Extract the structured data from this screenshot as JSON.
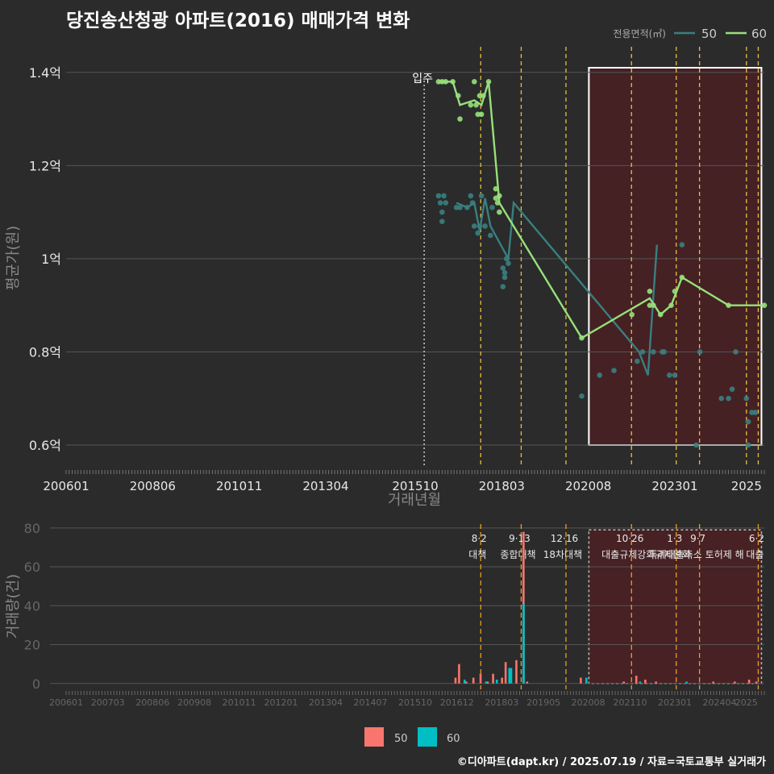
{
  "title": "당진송산청광 아파트(2016) 매매가격 변화",
  "footer": "©디아파트(dapt.kr) / 2025.07.19 / 자료=국토교통부 실거래가",
  "colors": {
    "background": "#2b2b2b",
    "grid": "#555555",
    "series50": "#3a7f7f",
    "series60": "#97e07a",
    "bar50": "#f8766d",
    "bar60": "#00bfc4",
    "policy": "#e8c040",
    "box": "#ffffff",
    "shade": "#4a2023"
  },
  "chart_data": [
    {
      "type": "line",
      "name": "price",
      "xlabel": "거래년월",
      "ylabel": "평균가(원)",
      "ylim": [
        0.555,
        1.455
      ],
      "y_unit": "억",
      "x_tick_labels": [
        "200601",
        "200806",
        "201011",
        "201304",
        "201510",
        "201803",
        "202008",
        "202301",
        "2025"
      ],
      "y_tick_labels": [
        "0.6억",
        "0.8억",
        "1억",
        "1.2억",
        "1.4억"
      ],
      "y_ticks": [
        0.6,
        0.8,
        1.0,
        1.2,
        1.4
      ],
      "legend_title": "전용면적(㎡)",
      "legend": [
        "50",
        "60"
      ],
      "annotation": "입주",
      "annotation_month": 2016.0,
      "policy_months": [
        2017.58,
        2018.71,
        2019.96,
        2021.79,
        2023.04,
        2023.69,
        2025.0,
        2025.33
      ],
      "highlight_range": [
        2020.6,
        2025.42
      ],
      "series": [
        {
          "name": "50",
          "line": [
            [
              2016.9,
              1.12
            ],
            [
              2017.2,
              1.11
            ],
            [
              2017.4,
              1.12
            ],
            [
              2017.55,
              1.06
            ],
            [
              2017.7,
              1.13
            ],
            [
              2017.85,
              1.07
            ],
            [
              2018.35,
              1.0
            ],
            [
              2018.5,
              1.12
            ],
            [
              2022.0,
              0.8
            ],
            [
              2022.25,
              0.75
            ],
            [
              2022.5,
              1.03
            ]
          ],
          "points": [
            [
              2016.4,
              1.135
            ],
            [
              2016.45,
              1.12
            ],
            [
              2016.5,
              1.1
            ],
            [
              2016.5,
              1.08
            ],
            [
              2016.55,
              1.135
            ],
            [
              2016.6,
              1.12
            ],
            [
              2016.9,
              1.11
            ],
            [
              2017.0,
              1.11
            ],
            [
              2017.2,
              1.11
            ],
            [
              2017.3,
              1.135
            ],
            [
              2017.35,
              1.12
            ],
            [
              2017.4,
              1.07
            ],
            [
              2017.5,
              1.055
            ],
            [
              2017.55,
              1.07
            ],
            [
              2017.6,
              1.135
            ],
            [
              2017.7,
              1.07
            ],
            [
              2017.85,
              1.05
            ],
            [
              2017.9,
              1.11
            ],
            [
              2018.2,
              0.98
            ],
            [
              2018.2,
              0.94
            ],
            [
              2018.25,
              0.97
            ],
            [
              2018.25,
              0.96
            ],
            [
              2018.3,
              1.0
            ],
            [
              2018.35,
              0.99
            ],
            [
              2020.4,
              0.705
            ],
            [
              2020.9,
              0.75
            ],
            [
              2021.3,
              0.76
            ],
            [
              2021.95,
              0.78
            ],
            [
              2022.1,
              0.8
            ],
            [
              2022.4,
              0.8
            ],
            [
              2022.65,
              0.8
            ],
            [
              2022.7,
              0.8
            ],
            [
              2022.85,
              0.75
            ],
            [
              2023.0,
              0.75
            ],
            [
              2023.2,
              1.03
            ],
            [
              2023.6,
              0.6
            ],
            [
              2023.7,
              0.8
            ],
            [
              2024.3,
              0.7
            ],
            [
              2024.5,
              0.7
            ],
            [
              2024.6,
              0.72
            ],
            [
              2024.7,
              0.8
            ],
            [
              2025.0,
              0.7
            ],
            [
              2025.05,
              0.65
            ],
            [
              2025.15,
              0.67
            ],
            [
              2025.25,
              0.67
            ],
            [
              2025.05,
              0.6
            ]
          ]
        },
        {
          "name": "60",
          "line": [
            [
              2016.4,
              1.38
            ],
            [
              2016.6,
              1.38
            ],
            [
              2016.8,
              1.38
            ],
            [
              2017.0,
              1.33
            ],
            [
              2017.4,
              1.34
            ],
            [
              2017.6,
              1.33
            ],
            [
              2017.8,
              1.38
            ],
            [
              2018.1,
              1.12
            ],
            [
              2020.4,
              0.83
            ],
            [
              2022.3,
              0.915
            ],
            [
              2022.6,
              0.88
            ],
            [
              2022.9,
              0.9
            ],
            [
              2023.2,
              0.96
            ],
            [
              2024.5,
              0.9
            ],
            [
              2025.5,
              0.9
            ]
          ],
          "points": [
            [
              2016.4,
              1.38
            ],
            [
              2016.5,
              1.38
            ],
            [
              2016.6,
              1.38
            ],
            [
              2016.8,
              1.38
            ],
            [
              2016.95,
              1.35
            ],
            [
              2017.0,
              1.3
            ],
            [
              2017.3,
              1.33
            ],
            [
              2017.4,
              1.38
            ],
            [
              2017.45,
              1.33
            ],
            [
              2017.5,
              1.31
            ],
            [
              2017.55,
              1.35
            ],
            [
              2017.6,
              1.31
            ],
            [
              2017.65,
              1.35
            ],
            [
              2017.8,
              1.38
            ],
            [
              2018.0,
              1.15
            ],
            [
              2018.0,
              1.13
            ],
            [
              2018.05,
              1.12
            ],
            [
              2018.1,
              1.1
            ],
            [
              2018.1,
              1.135
            ],
            [
              2020.4,
              0.83
            ],
            [
              2021.8,
              0.88
            ],
            [
              2022.3,
              0.93
            ],
            [
              2022.3,
              0.9
            ],
            [
              2022.4,
              0.9
            ],
            [
              2022.6,
              0.88
            ],
            [
              2022.9,
              0.9
            ],
            [
              2023.0,
              0.93
            ],
            [
              2023.2,
              0.96
            ],
            [
              2024.5,
              0.9
            ],
            [
              2025.5,
              0.9
            ]
          ]
        }
      ]
    },
    {
      "type": "bar",
      "name": "volume",
      "ylabel": "거래량(건)",
      "ylim": [
        -3,
        82
      ],
      "y_ticks": [
        0,
        20,
        40,
        60,
        80
      ],
      "x_tick_labels": [
        "200601",
        "200703",
        "200806",
        "200908",
        "201011",
        "201201",
        "201304",
        "201407",
        "201510",
        "201612",
        "201803",
        "201905",
        "202008",
        "202110",
        "202301",
        "202404",
        "2025"
      ],
      "highlight_range": [
        2020.6,
        2025.42
      ],
      "policies": [
        {
          "month": 2017.58,
          "date": "8·2",
          "label": "대책"
        },
        {
          "month": 2018.71,
          "date": "9·13",
          "label": "종합대책"
        },
        {
          "month": 2019.96,
          "date": "12·16",
          "label": "18차대책"
        },
        {
          "month": 2021.79,
          "date": "10·26",
          "label": "대출규제강화"
        },
        {
          "month": 2023.04,
          "date": "1·3",
          "label": "규제완화"
        },
        {
          "month": 2023.69,
          "date": "9·7",
          "label": "특례대출축소 토허제 해"
        },
        {
          "month": 2025.33,
          "date": "6·2",
          "label": "대출"
        }
      ],
      "legend": [
        "50",
        "60"
      ],
      "series": [
        {
          "name": "50",
          "values": [
            [
              2016.9,
              3
            ],
            [
              2017.0,
              10
            ],
            [
              2017.2,
              1
            ],
            [
              2017.4,
              3
            ],
            [
              2017.6,
              5
            ],
            [
              2017.8,
              1
            ],
            [
              2017.95,
              5
            ],
            [
              2018.2,
              3
            ],
            [
              2018.3,
              11
            ],
            [
              2018.6,
              12
            ],
            [
              2018.8,
              78
            ],
            [
              2018.9,
              1
            ],
            [
              2020.4,
              3
            ],
            [
              2021.6,
              1
            ],
            [
              2021.95,
              4
            ],
            [
              2022.2,
              2
            ],
            [
              2022.5,
              1
            ],
            [
              2024.1,
              1
            ],
            [
              2024.7,
              1
            ],
            [
              2025.1,
              2
            ],
            [
              2025.3,
              1
            ]
          ]
        },
        {
          "name": "60",
          "values": [
            [
              2017.1,
              2
            ],
            [
              2017.7,
              1
            ],
            [
              2018.0,
              2
            ],
            [
              2018.35,
              8
            ],
            [
              2018.4,
              8
            ],
            [
              2018.75,
              41
            ],
            [
              2020.5,
              3
            ],
            [
              2022.0,
              1
            ],
            [
              2023.3,
              1
            ]
          ]
        }
      ]
    }
  ]
}
